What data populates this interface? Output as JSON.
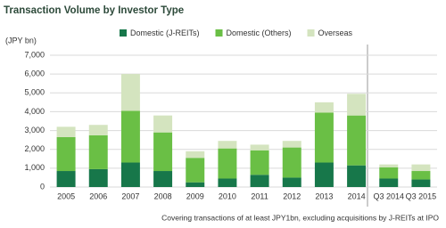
{
  "chart_data": {
    "type": "stacked-bar",
    "title": "Transaction Volume by Investor Type",
    "y_label": "(JPY bn)",
    "note": "Covering transactions of at least JPY1bn, excluding acquisitions by J-REITs at IPO",
    "categories": [
      "2005",
      "2006",
      "2007",
      "2008",
      "2009",
      "2010",
      "2011",
      "2012",
      "2013",
      "2014",
      "Q3 2014",
      "Q3 2015"
    ],
    "series": [
      {
        "name": "Domestic (J-REITs)",
        "color": "#17774a",
        "values": [
          850,
          950,
          1300,
          850,
          250,
          450,
          650,
          500,
          1300,
          1150,
          450,
          400
        ]
      },
      {
        "name": "Domestic (Others)",
        "color": "#6abf45",
        "values": [
          1800,
          1800,
          2750,
          2050,
          1300,
          1600,
          1300,
          1600,
          2650,
          2650,
          600,
          450
        ]
      },
      {
        "name": "Overseas",
        "color": "#d4e4bf",
        "values": [
          550,
          550,
          1950,
          900,
          350,
          400,
          300,
          350,
          550,
          1150,
          150,
          350
        ]
      }
    ],
    "ylim": [
      0,
      7000
    ],
    "yticks": [
      0,
      {
        "value": 1000,
        "label": "1,000"
      },
      {
        "value": 2000,
        "label": "2,000"
      },
      {
        "value": 3000,
        "label": "3,000"
      },
      {
        "value": 4000,
        "label": "4,000"
      },
      {
        "value": 5000,
        "label": "5,000"
      },
      {
        "value": 6000,
        "label": "6,000"
      },
      {
        "value": 7000,
        "label": "7,000"
      }
    ],
    "grid": true
  }
}
